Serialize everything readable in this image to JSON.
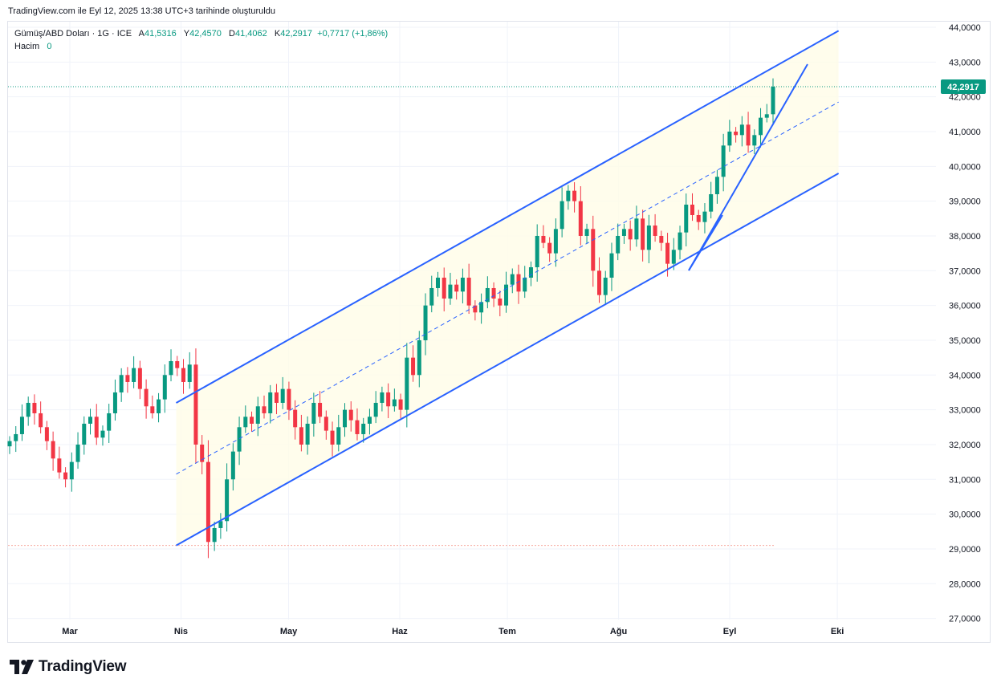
{
  "caption": "TradingView.com ile Eyl 12, 2025 13:38 UTC+3 tarihinde oluşturuldu",
  "legend": {
    "symbol": "Gümüş/ABD Doları · 1G · ICE",
    "open_key": "A",
    "open": "41,5316",
    "high_key": "Y",
    "high": "42,4570",
    "low_key": "D",
    "low": "41,4062",
    "close_key": "K",
    "close": "42,2917",
    "change": "+0,7717 (+1,86%)",
    "volume_label": "Hacim",
    "volume_value": "0"
  },
  "brand": "TradingView",
  "colors": {
    "up": "#089981",
    "down": "#f23645",
    "channel": "#2962ff",
    "fill": "#fffde7",
    "grid": "#f0f3fa"
  },
  "chart_data": {
    "type": "candlestick",
    "y_axis_ticks": [
      "27,0000",
      "28,0000",
      "29,0000",
      "30,0000",
      "31,0000",
      "32,0000",
      "33,0000",
      "34,0000",
      "35,0000",
      "36,0000",
      "37,0000",
      "38,0000",
      "39,0000",
      "40,0000",
      "41,0000",
      "42,0000",
      "43,0000",
      "44,0000"
    ],
    "ylim": [
      27,
      44
    ],
    "x_axis_labels": [
      {
        "label": "Mar",
        "date": "2025-03-01"
      },
      {
        "label": "Nis",
        "date": "2025-04-01"
      },
      {
        "label": "May",
        "date": "2025-05-01"
      },
      {
        "label": "Haz",
        "date": "2025-06-01"
      },
      {
        "label": "Tem",
        "date": "2025-07-01"
      },
      {
        "label": "Ağu",
        "date": "2025-08-01"
      },
      {
        "label": "Eyl",
        "date": "2025-09-01"
      },
      {
        "label": "Eki",
        "date": "2025-10-01"
      }
    ],
    "last_price_label": "42,2917",
    "last_price": 42.2917,
    "reference_level": 29.1,
    "candle_closes": [
      32.1,
      32.3,
      32.8,
      33.2,
      32.9,
      32.5,
      32.1,
      31.6,
      31.2,
      31.0,
      31.5,
      32.0,
      32.6,
      32.8,
      32.2,
      32.4,
      32.9,
      33.5,
      34.0,
      33.8,
      34.2,
      33.6,
      33.1,
      32.9,
      33.3,
      34.0,
      34.4,
      34.2,
      33.8,
      34.3,
      32.0,
      31.5,
      29.2,
      29.6,
      29.8,
      31.0,
      31.8,
      32.5,
      32.8,
      32.6,
      33.1,
      32.9,
      33.5,
      33.2,
      33.6,
      33.0,
      32.5,
      32.0,
      32.6,
      33.2,
      32.8,
      32.4,
      32.0,
      32.5,
      33.0,
      32.7,
      32.3,
      32.6,
      32.8,
      33.2,
      33.5,
      33.1,
      33.3,
      33.0,
      34.5,
      34.0,
      35.0,
      36.0,
      36.5,
      36.8,
      36.2,
      36.6,
      36.4,
      36.8,
      36.0,
      35.8,
      36.1,
      36.5,
      36.2,
      36.0,
      36.6,
      36.9,
      36.4,
      36.8,
      37.1,
      38.0,
      37.8,
      37.5,
      38.2,
      39.0,
      39.3,
      39.0,
      38.0,
      38.2,
      37.0,
      36.3,
      36.8,
      37.5,
      38.0,
      38.2,
      37.9,
      38.5,
      37.6,
      38.3,
      38.0,
      37.8,
      37.2,
      37.6,
      38.1,
      38.9,
      38.6,
      38.4,
      38.7,
      39.2,
      39.7,
      40.6,
      41.0,
      40.9,
      41.2,
      40.6,
      40.9,
      41.4,
      41.5,
      42.2917
    ],
    "channel": {
      "upper_start": 33.2,
      "upper_end": 43.9,
      "lower_start": 29.1,
      "lower_end": 39.8,
      "start": "2025-04-01",
      "end": "2025-09-30"
    }
  }
}
